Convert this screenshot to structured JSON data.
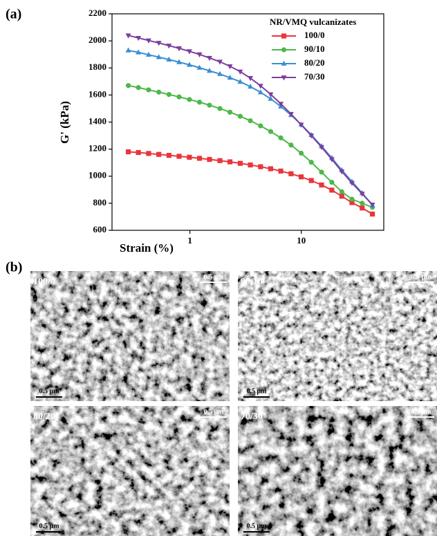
{
  "chart_data": {
    "type": "line",
    "xscale": "log",
    "xlabel": "Strain (%)",
    "ylabel": "G' (kPa)",
    "legend_title": "NR/VMQ vulcanizates",
    "legend": "upper right",
    "x": [
      0.28,
      0.345,
      0.426,
      0.526,
      0.649,
      0.8,
      0.99,
      1.22,
      1.5,
      1.86,
      2.29,
      2.83,
      3.49,
      4.31,
      5.31,
      6.55,
      8.09,
      9.98,
      12.3,
      15.2,
      18.8,
      23.1,
      28.5,
      35.2,
      43.5
    ],
    "xlim": [
      0.2,
      55
    ],
    "xticks": [
      1,
      10
    ],
    "ylim": [
      600,
      2200
    ],
    "yticks": [
      600,
      800,
      1000,
      1200,
      1400,
      1600,
      1800,
      2000,
      2200
    ],
    "series": [
      {
        "name": "100/0",
        "color": "#e8363b",
        "marker": "square",
        "values": [
          1180,
          1175,
          1168,
          1161,
          1154,
          1147,
          1140,
          1132,
          1124,
          1115,
          1106,
          1095,
          1083,
          1070,
          1055,
          1038,
          1018,
          995,
          968,
          935,
          897,
          852,
          805,
          765,
          720
        ]
      },
      {
        "name": "90/10",
        "color": "#4cb849",
        "marker": "circle",
        "values": [
          1670,
          1655,
          1638,
          1621,
          1604,
          1586,
          1567,
          1547,
          1525,
          1500,
          1473,
          1443,
          1410,
          1372,
          1330,
          1283,
          1230,
          1170,
          1103,
          1030,
          955,
          885,
          830,
          800,
          770
        ]
      },
      {
        "name": "80/20",
        "color": "#3b8fd0",
        "marker": "triangle-up",
        "values": [
          1930,
          1915,
          1898,
          1880,
          1862,
          1843,
          1823,
          1802,
          1779,
          1755,
          1728,
          1698,
          1662,
          1620,
          1572,
          1515,
          1452,
          1382,
          1305,
          1222,
          1135,
          1045,
          960,
          875,
          785
        ]
      },
      {
        "name": "70/30",
        "color": "#7b3e9e",
        "marker": "triangle-down",
        "values": [
          2040,
          2022,
          2003,
          1985,
          1965,
          1945,
          1923,
          1900,
          1874,
          1846,
          1812,
          1773,
          1725,
          1668,
          1605,
          1535,
          1460,
          1380,
          1300,
          1215,
          1125,
          1035,
          950,
          870,
          790
        ]
      }
    ]
  },
  "figure": {
    "panel_a": "(a)",
    "panel_b": "(b)",
    "images": [
      {
        "label": "100/0",
        "scale_top": "0.5 μm",
        "scale_bottom": "0.5 μm"
      },
      {
        "label": "90/10",
        "scale_top": "0.5 μm",
        "scale_bottom": "0.5 μm"
      },
      {
        "label": "80/20",
        "scale_top": "0.5 μm",
        "scale_bottom": "0.5 μm"
      },
      {
        "label": "70/30",
        "scale_top": "0.5 μm",
        "scale_bottom": "0.5 μm"
      }
    ]
  }
}
